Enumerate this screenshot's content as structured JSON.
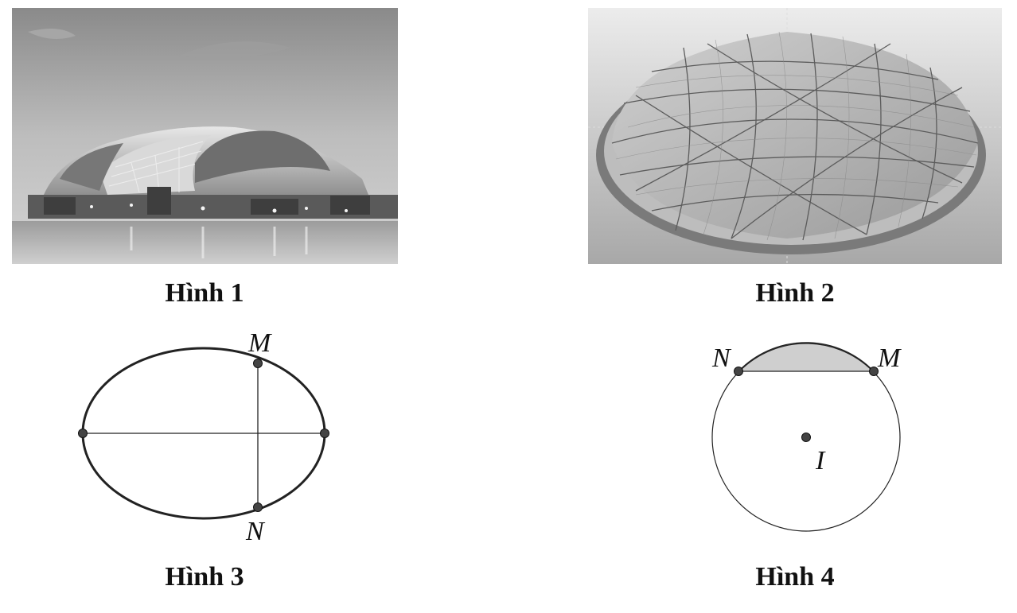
{
  "figures": [
    {
      "caption": "Hình 1",
      "content": "photo"
    },
    {
      "caption": "Hình 2",
      "content": "render"
    },
    {
      "caption": "Hình 3",
      "points": {
        "top": "M",
        "bottom": "N"
      }
    },
    {
      "caption": "Hình 4",
      "points": {
        "left": "N",
        "right": "M",
        "center": "I"
      }
    }
  ],
  "colors": {
    "stroke": "#222222",
    "point_fill": "#444444",
    "segment_fill": "#cfcfcf",
    "photo_bg": "#9a9a9a"
  }
}
